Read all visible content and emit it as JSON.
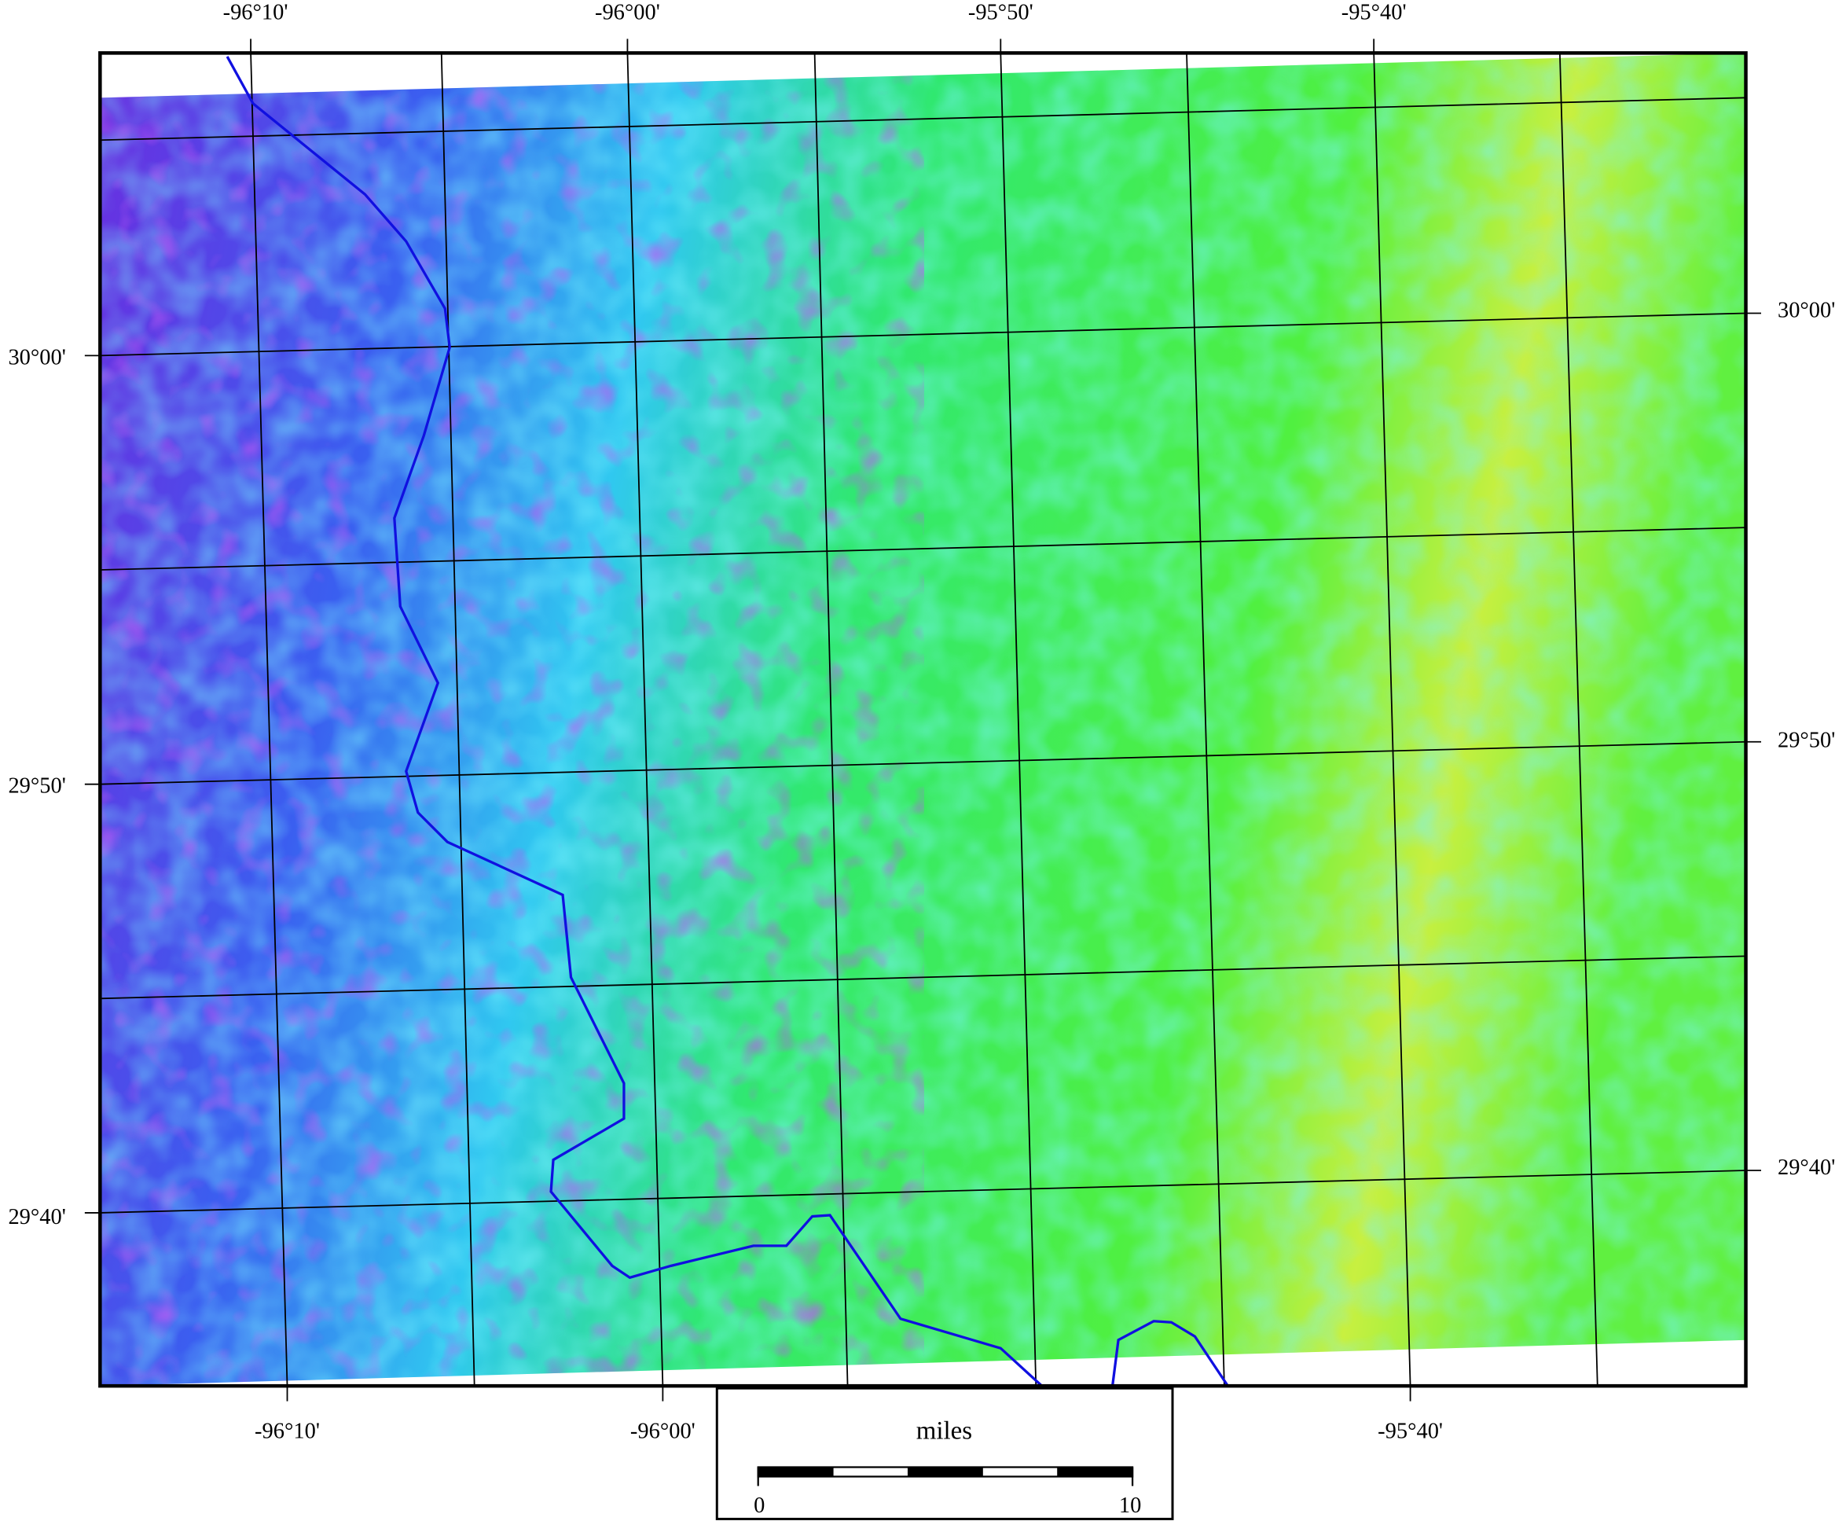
{
  "map": {
    "top_labels": [
      "-96°10'",
      "-96°00'",
      "-95°50'",
      "-95°40'"
    ],
    "bottom_labels": [
      "-96°10'",
      "-96°00'",
      "-95°40'"
    ],
    "left_labels": [
      "30°00'",
      "29°50'",
      "29°40'"
    ],
    "right_labels": [
      "30°00'",
      "29°50'",
      "29°40'"
    ],
    "scale_bar": {
      "unit": "miles",
      "start": "0",
      "end": "10"
    }
  }
}
